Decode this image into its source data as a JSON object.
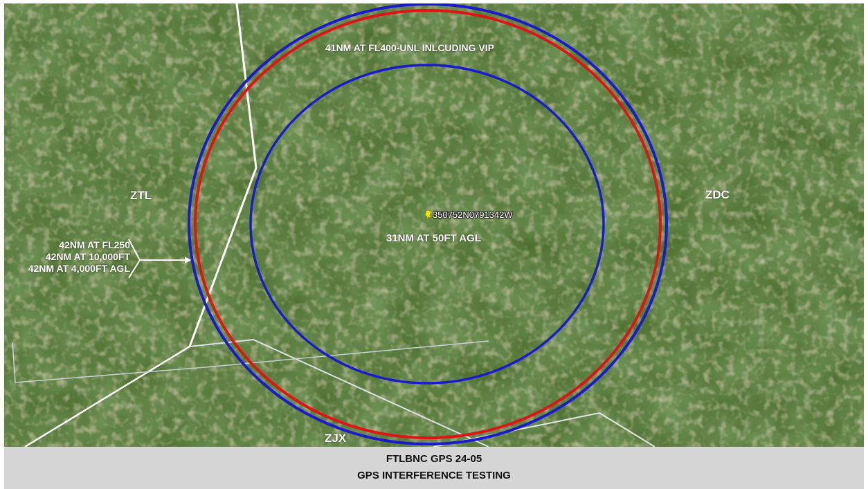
{
  "map": {
    "labels": {
      "outer_ring": "41NM AT FL400-UNL INLCUDING VIP",
      "inner_ring": "31NM AT 50FT AGL",
      "center_point": "350752N0791342W",
      "west_center": "ZTL",
      "east_center": "ZDC",
      "south_center": "ZJX"
    },
    "left_callout": [
      "42NM AT FL250",
      "42NM AT 10,000FT",
      "42NM AT 4,000FT AGL"
    ],
    "pin_icon": "yellow-pushpin-icon",
    "colors": {
      "outer_blue_ring": "#1a1ad0",
      "red_ring": "#e01414",
      "inner_blue_ring": "#1a1ad0",
      "boundary_line": "#ffffff",
      "pin": "#f2e600"
    }
  },
  "caption": {
    "line1": "FTLBNC GPS 24-05",
    "line2": "GPS INTERFERENCE TESTING"
  }
}
